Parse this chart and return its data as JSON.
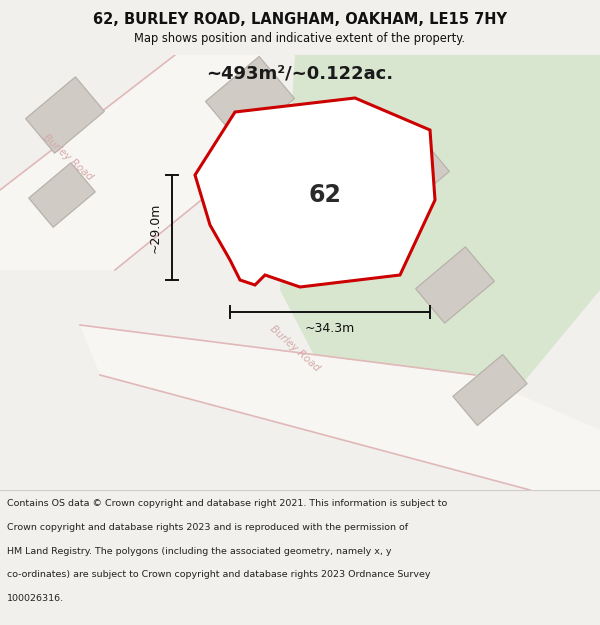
{
  "title": "62, BURLEY ROAD, LANGHAM, OAKHAM, LE15 7HY",
  "subtitle": "Map shows position and indicative extent of the property.",
  "area_label": "~493m²/~0.122ac.",
  "plot_number": "62",
  "dim_horizontal": "~34.3m",
  "dim_vertical": "~29.0m",
  "road_label_upper": "Burley Road",
  "road_label_lower": "Burley Road",
  "footer_text_line1": "Contains OS data © Crown copyright and database right 2021. This information is subject to",
  "footer_text_line2": "Crown copyright and database rights 2023 and is reproduced with the permission of",
  "footer_text_line3": "HM Land Registry. The polygons (including the associated geometry, namely x, y",
  "footer_text_line4": "co-ordinates) are subject to Crown copyright and database rights 2023 Ordnance Survey",
  "footer_text_line5": "100026316.",
  "bg_color": "#f2f0ed",
  "map_bg": "#ede9e4",
  "green_area": "#d8e6d0",
  "road_fill": "#f8f6f3",
  "road_border": "#e0b8b8",
  "building_fill": "#d0cbc4",
  "building_stroke": "#b8b2aa",
  "plot_fill": "#f2f0ed",
  "plot_stroke": "#cc0000",
  "footer_bg": "#ffffff",
  "title_color": "#111111",
  "footer_color": "#222222",
  "dim_color": "#111111"
}
